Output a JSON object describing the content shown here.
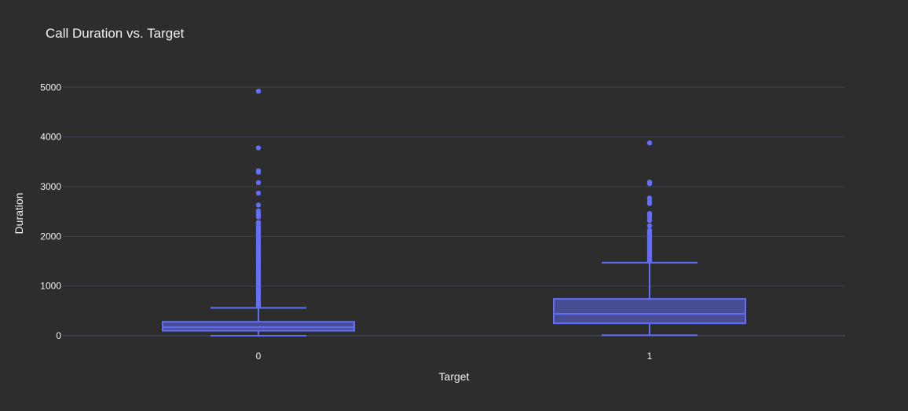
{
  "chart_data": {
    "type": "box",
    "title": "Call Duration vs. Target",
    "xlabel": "Target",
    "ylabel": "Duration",
    "ylim": [
      -200,
      5300
    ],
    "yticks": [
      0,
      1000,
      2000,
      3000,
      4000,
      5000
    ],
    "grid": true,
    "colors": {
      "background": "#2d2d2d",
      "grid": "#3c4350",
      "box": "#636efa"
    },
    "categories": [
      "0",
      "1"
    ],
    "boxes": [
      {
        "category": "0",
        "min": 0,
        "q1": 100,
        "median": 170,
        "q3": 280,
        "upper_fence": 560,
        "outliers": [
          4920,
          3780,
          3320,
          3290,
          3080,
          2870,
          2630,
          2510,
          2470,
          2430,
          2390,
          2280,
          2240,
          2200,
          2160,
          2120,
          2080,
          2040,
          2000,
          1960,
          1920,
          1880,
          1840,
          1800,
          1760,
          1720,
          1680,
          1640,
          1600,
          1560,
          1520,
          1480,
          1440,
          1400,
          1360,
          1320,
          1280,
          1240,
          1200,
          1160,
          1120,
          1080,
          1040,
          1000,
          960,
          920,
          880,
          840,
          800,
          760,
          720,
          680,
          640,
          600
        ]
      },
      {
        "category": "1",
        "min": 10,
        "q1": 250,
        "median": 440,
        "q3": 740,
        "upper_fence": 1470,
        "outliers": [
          3880,
          3090,
          3060,
          2770,
          2710,
          2660,
          2460,
          2420,
          2380,
          2320,
          2210,
          2120,
          2090,
          2060,
          2020,
          1980,
          1940,
          1900,
          1860,
          1820,
          1780,
          1740,
          1700,
          1660,
          1620,
          1580,
          1540,
          1500
        ]
      }
    ]
  }
}
